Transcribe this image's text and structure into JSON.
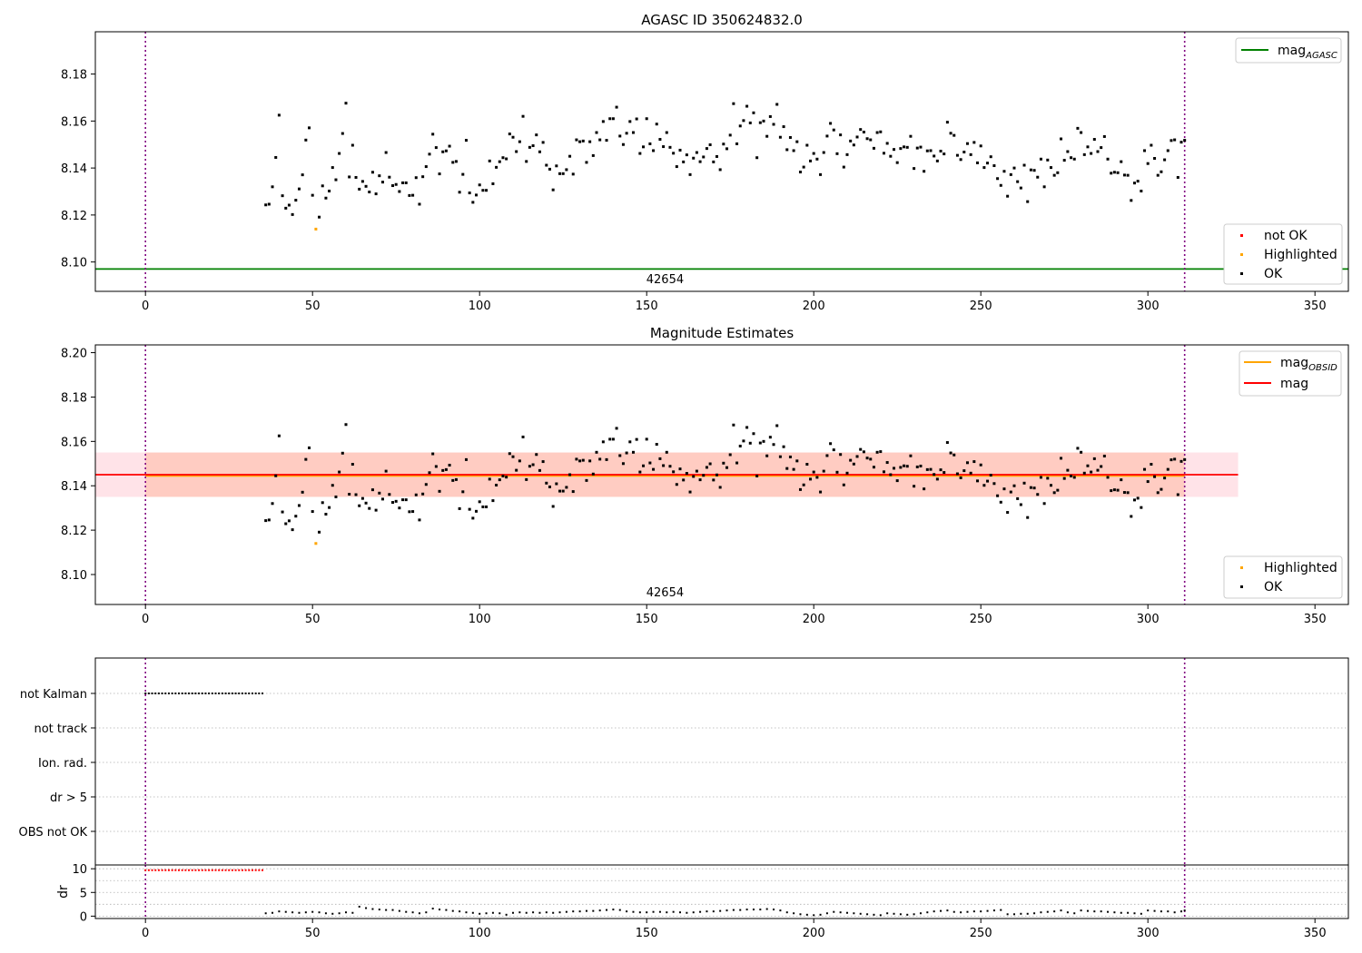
{
  "chart_data": [
    {
      "id": "agasc",
      "type": "scatter",
      "title": "AGASC ID 350624832.0",
      "xlim": [
        -15,
        360
      ],
      "ylim": [
        8.0875,
        8.198
      ],
      "xticks": [
        0,
        50,
        100,
        150,
        200,
        250,
        300,
        350
      ],
      "yticks": [
        8.1,
        8.12,
        8.14,
        8.16,
        8.18
      ],
      "ytick_labels": [
        "8.10",
        "8.12",
        "8.14",
        "8.16",
        "8.18"
      ],
      "obsid_label": "42654",
      "obsid_boundaries": [
        0,
        311
      ],
      "mag_agasc": 8.097,
      "legend_upper": [
        "mag_AGASC"
      ],
      "legend_lower": [
        "not OK",
        "Highlighted",
        "OK"
      ],
      "highlighted": [
        [
          51,
          8.114
        ]
      ],
      "not_ok": []
    },
    {
      "id": "estimates",
      "type": "scatter",
      "title": "Magnitude Estimates",
      "xlim": [
        -15,
        360
      ],
      "ylim": [
        8.0865,
        8.2035
      ],
      "xticks": [
        0,
        50,
        100,
        150,
        200,
        250,
        300,
        350
      ],
      "yticks": [
        8.1,
        8.12,
        8.14,
        8.16,
        8.18,
        8.2
      ],
      "ytick_labels": [
        "8.10",
        "8.12",
        "8.14",
        "8.16",
        "8.18",
        "8.20"
      ],
      "obsid_label": "42654",
      "obsid_boundaries": [
        0,
        311
      ],
      "mag": 8.145,
      "mag_band": [
        8.135,
        8.155
      ],
      "mag_extent": [
        -15,
        327
      ],
      "mag_obsid": 8.1445,
      "mag_obsid_band": [
        8.135,
        8.155
      ],
      "mag_obsid_extent": [
        0,
        311
      ],
      "legend_upper": [
        "mag_OBSID",
        "mag"
      ],
      "legend_lower": [
        "Highlighted",
        "OK"
      ],
      "highlighted": [
        [
          51,
          8.114
        ]
      ]
    },
    {
      "id": "flags",
      "type": "scatter",
      "categories": [
        "not Kalman",
        "not track",
        "Ion. rad.",
        "dr > 5",
        "OBS not OK"
      ],
      "xlim": [
        -15,
        360
      ],
      "flags": {
        "not Kalman": [
          0,
          35
        ]
      }
    },
    {
      "id": "dr",
      "type": "scatter",
      "ylabel": "dr",
      "xlim": [
        -15,
        360
      ],
      "ylim": [
        -0.5,
        10.8
      ],
      "yticks": [
        0,
        5,
        10
      ],
      "xticks": [
        0,
        50,
        100,
        150,
        200,
        250,
        300,
        350
      ],
      "not_ok_range": [
        0,
        35
      ],
      "not_ok_value": 9.7
    }
  ],
  "legend_text": {
    "mag_main": "mag",
    "agasc_sub": "AGASC",
    "obsid_sub": "OBSID",
    "mag_plain": "mag",
    "not_ok": "not OK",
    "highlighted": "Highlighted",
    "ok": "OK"
  },
  "colors": {
    "ok": "#000000",
    "highlighted": "#ffa500",
    "not_ok": "#ff0000",
    "agasc_line": "#008000",
    "mag_line": "#ff0000",
    "obsid_line": "#ffa500",
    "obsid_boundary": "#800080",
    "mag_band": "#ffc0cb",
    "obsid_band": "#ffa07a"
  },
  "ok_points": [
    [
      36,
      8.1243
    ],
    [
      37,
      8.1246
    ],
    [
      38,
      8.132
    ],
    [
      39,
      8.1445
    ],
    [
      40,
      8.1625
    ],
    [
      41,
      8.1282
    ],
    [
      42,
      8.1229
    ],
    [
      43,
      8.1242
    ],
    [
      44,
      8.1202
    ],
    [
      45,
      8.1263
    ],
    [
      46,
      8.1311
    ],
    [
      47,
      8.1371
    ],
    [
      48,
      8.1519
    ],
    [
      49,
      8.1571
    ],
    [
      50,
      8.1284
    ],
    [
      52,
      8.1191
    ],
    [
      53,
      8.1324
    ],
    [
      54,
      8.1272
    ],
    [
      55,
      8.1302
    ],
    [
      56,
      8.1402
    ],
    [
      57,
      8.135
    ],
    [
      58,
      8.1462
    ],
    [
      59,
      8.1547
    ],
    [
      60,
      8.1676
    ],
    [
      61,
      8.1362
    ],
    [
      62,
      8.1497
    ],
    [
      63,
      8.136
    ],
    [
      64,
      8.131
    ],
    [
      65,
      8.1343
    ],
    [
      66,
      8.1322
    ],
    [
      67,
      8.1298
    ],
    [
      68,
      8.1382
    ],
    [
      69,
      8.129
    ],
    [
      70,
      8.1367
    ],
    [
      71,
      8.134
    ],
    [
      72,
      8.1466
    ],
    [
      73,
      8.1361
    ],
    [
      74,
      8.1325
    ],
    [
      75,
      8.133
    ],
    [
      76,
      8.13
    ],
    [
      77,
      8.1337
    ],
    [
      78,
      8.1337
    ],
    [
      79,
      8.1283
    ],
    [
      80,
      8.1284
    ],
    [
      81,
      8.1359
    ],
    [
      82,
      8.1246
    ],
    [
      83,
      8.1363
    ],
    [
      84,
      8.1406
    ],
    [
      85,
      8.1459
    ],
    [
      86,
      8.1544
    ],
    [
      87,
      8.1487
    ],
    [
      88,
      8.1375
    ],
    [
      89,
      8.1469
    ],
    [
      90,
      8.1473
    ],
    [
      91,
      8.1493
    ],
    [
      92,
      8.1424
    ],
    [
      93,
      8.1428
    ],
    [
      94,
      8.1297
    ],
    [
      95,
      8.1373
    ],
    [
      96,
      8.1518
    ],
    [
      97,
      8.1294
    ],
    [
      98,
      8.1254
    ],
    [
      99,
      8.1285
    ],
    [
      100,
      8.1328
    ],
    [
      101,
      8.1305
    ],
    [
      102,
      8.1305
    ],
    [
      103,
      8.143
    ],
    [
      104,
      8.1333
    ],
    [
      105,
      8.1403
    ],
    [
      106,
      8.1427
    ],
    [
      107,
      8.1444
    ],
    [
      108,
      8.1439
    ],
    [
      109,
      8.1545
    ],
    [
      110,
      8.1531
    ],
    [
      111,
      8.147
    ],
    [
      112,
      8.1512
    ],
    [
      113,
      8.162
    ],
    [
      114,
      8.1428
    ],
    [
      115,
      8.1488
    ],
    [
      116,
      8.1495
    ],
    [
      117,
      8.1541
    ],
    [
      118,
      8.1469
    ],
    [
      119,
      8.1509
    ],
    [
      120,
      8.1412
    ],
    [
      121,
      8.1395
    ],
    [
      122,
      8.1307
    ],
    [
      123,
      8.1409
    ],
    [
      124,
      8.1376
    ],
    [
      125,
      8.1376
    ],
    [
      126,
      8.1393
    ],
    [
      127,
      8.145
    ],
    [
      128,
      8.1374
    ],
    [
      129,
      8.152
    ],
    [
      130,
      8.1512
    ],
    [
      131,
      8.1515
    ],
    [
      132,
      8.1424
    ],
    [
      133,
      8.1512
    ],
    [
      134,
      8.1453
    ],
    [
      135,
      8.1551
    ],
    [
      136,
      8.152
    ],
    [
      137,
      8.1598
    ],
    [
      138,
      8.1518
    ],
    [
      139,
      8.161
    ],
    [
      140,
      8.161
    ],
    [
      141,
      8.1659
    ],
    [
      142,
      8.1536
    ],
    [
      143,
      8.15
    ],
    [
      144,
      8.1548
    ],
    [
      145,
      8.1598
    ],
    [
      146,
      8.1551
    ],
    [
      147,
      8.1609
    ],
    [
      148,
      8.1462
    ],
    [
      149,
      8.149
    ],
    [
      150,
      8.161
    ],
    [
      151,
      8.1503
    ],
    [
      152,
      8.1474
    ],
    [
      153,
      8.1587
    ],
    [
      154,
      8.1522
    ],
    [
      155,
      8.1491
    ],
    [
      156,
      8.1551
    ],
    [
      157,
      8.1488
    ],
    [
      158,
      8.1463
    ],
    [
      159,
      8.1406
    ],
    [
      160,
      8.1476
    ],
    [
      161,
      8.1426
    ],
    [
      162,
      8.1456
    ],
    [
      163,
      8.1372
    ],
    [
      164,
      8.1442
    ],
    [
      165,
      8.1466
    ],
    [
      166,
      8.1427
    ],
    [
      167,
      8.1447
    ],
    [
      168,
      8.1483
    ],
    [
      169,
      8.1499
    ],
    [
      170,
      8.1426
    ],
    [
      171,
      8.1449
    ],
    [
      172,
      8.1393
    ],
    [
      173,
      8.1502
    ],
    [
      174,
      8.1482
    ],
    [
      175,
      8.154
    ],
    [
      176,
      8.1674
    ],
    [
      177,
      8.1503
    ],
    [
      178,
      8.1579
    ],
    [
      179,
      8.1602
    ],
    [
      180,
      8.1663
    ],
    [
      181,
      8.1592
    ],
    [
      182,
      8.1635
    ],
    [
      183,
      8.1444
    ],
    [
      184,
      8.1593
    ],
    [
      185,
      8.16
    ],
    [
      186,
      8.1535
    ],
    [
      187,
      8.1619
    ],
    [
      188,
      8.1586
    ],
    [
      189,
      8.1671
    ],
    [
      190,
      8.1531
    ],
    [
      191,
      8.1576
    ],
    [
      192,
      8.1478
    ],
    [
      193,
      8.153
    ],
    [
      194,
      8.1474
    ],
    [
      195,
      8.1512
    ],
    [
      196,
      8.1383
    ],
    [
      197,
      8.1404
    ],
    [
      198,
      8.1497
    ],
    [
      199,
      8.143
    ],
    [
      200,
      8.1462
    ],
    [
      201,
      8.1438
    ],
    [
      202,
      8.1372
    ],
    [
      203,
      8.1466
    ],
    [
      204,
      8.1536
    ],
    [
      205,
      8.159
    ],
    [
      206,
      8.1562
    ],
    [
      207,
      8.1461
    ],
    [
      208,
      8.1541
    ],
    [
      209,
      8.1404
    ],
    [
      210,
      8.1457
    ],
    [
      211,
      8.1515
    ],
    [
      212,
      8.1498
    ],
    [
      213,
      8.1532
    ],
    [
      214,
      8.1564
    ],
    [
      215,
      8.1553
    ],
    [
      216,
      8.1525
    ],
    [
      217,
      8.152
    ],
    [
      218,
      8.1484
    ],
    [
      219,
      8.1551
    ],
    [
      220,
      8.1554
    ],
    [
      221,
      8.1463
    ],
    [
      222,
      8.1505
    ],
    [
      223,
      8.145
    ],
    [
      224,
      8.1479
    ],
    [
      225,
      8.1423
    ],
    [
      226,
      8.1483
    ],
    [
      227,
      8.149
    ],
    [
      228,
      8.1488
    ],
    [
      229,
      8.1535
    ],
    [
      230,
      8.1398
    ],
    [
      231,
      8.1485
    ],
    [
      232,
      8.1489
    ],
    [
      233,
      8.1386
    ],
    [
      234,
      8.1473
    ],
    [
      235,
      8.1474
    ],
    [
      236,
      8.1451
    ],
    [
      237,
      8.143
    ],
    [
      238,
      8.1472
    ],
    [
      239,
      8.146
    ],
    [
      240,
      8.1595
    ],
    [
      241,
      8.1548
    ],
    [
      242,
      8.1539
    ],
    [
      243,
      8.1454
    ],
    [
      244,
      8.1436
    ],
    [
      245,
      8.1468
    ],
    [
      246,
      8.1504
    ],
    [
      247,
      8.1457
    ],
    [
      248,
      8.1509
    ],
    [
      249,
      8.1422
    ],
    [
      250,
      8.1494
    ],
    [
      251,
      8.1402
    ],
    [
      252,
      8.1421
    ],
    [
      253,
      8.1448
    ],
    [
      254,
      8.141
    ],
    [
      255,
      8.1355
    ],
    [
      256,
      8.1326
    ],
    [
      257,
      8.1386
    ],
    [
      258,
      8.128
    ],
    [
      259,
      8.1372
    ],
    [
      260,
      8.14
    ],
    [
      261,
      8.1342
    ],
    [
      262,
      8.1315
    ],
    [
      263,
      8.1412
    ],
    [
      264,
      8.1257
    ],
    [
      265,
      8.1392
    ],
    [
      266,
      8.139
    ],
    [
      267,
      8.1361
    ],
    [
      268,
      8.1438
    ],
    [
      269,
      8.132
    ],
    [
      270,
      8.1434
    ],
    [
      271,
      8.1402
    ],
    [
      272,
      8.1369
    ],
    [
      273,
      8.138
    ],
    [
      274,
      8.1524
    ],
    [
      275,
      8.1433
    ],
    [
      276,
      8.147
    ],
    [
      277,
      8.1444
    ],
    [
      278,
      8.1438
    ],
    [
      279,
      8.1569
    ],
    [
      280,
      8.1551
    ],
    [
      281,
      8.1457
    ],
    [
      282,
      8.149
    ],
    [
      283,
      8.1462
    ],
    [
      284,
      8.1522
    ],
    [
      285,
      8.147
    ],
    [
      286,
      8.1487
    ],
    [
      287,
      8.1534
    ],
    [
      288,
      8.1438
    ],
    [
      289,
      8.1378
    ],
    [
      290,
      8.1382
    ],
    [
      291,
      8.138
    ],
    [
      292,
      8.1427
    ],
    [
      293,
      8.137
    ],
    [
      294,
      8.1369
    ],
    [
      295,
      8.1262
    ],
    [
      296,
      8.1336
    ],
    [
      297,
      8.1344
    ],
    [
      298,
      8.1302
    ],
    [
      299,
      8.1474
    ],
    [
      300,
      8.1419
    ],
    [
      301,
      8.1497
    ],
    [
      302,
      8.1441
    ],
    [
      303,
      8.1369
    ],
    [
      304,
      8.1384
    ],
    [
      305,
      8.1435
    ],
    [
      306,
      8.1474
    ],
    [
      307,
      8.1517
    ],
    [
      308,
      8.152
    ],
    [
      309,
      8.136
    ],
    [
      310,
      8.151
    ],
    [
      311,
      8.1518
    ]
  ],
  "dr_points": [
    [
      36,
      0.6
    ],
    [
      38,
      0.7
    ],
    [
      40,
      1.0
    ],
    [
      42,
      0.9
    ],
    [
      44,
      0.8
    ],
    [
      46,
      0.7
    ],
    [
      48,
      0.8
    ],
    [
      50,
      0.9
    ],
    [
      52,
      0.8
    ],
    [
      54,
      0.6
    ],
    [
      56,
      0.5
    ],
    [
      58,
      0.6
    ],
    [
      60,
      0.8
    ],
    [
      62,
      0.7
    ],
    [
      64,
      2.0
    ],
    [
      66,
      1.7
    ],
    [
      68,
      1.5
    ],
    [
      70,
      1.4
    ],
    [
      72,
      1.3
    ],
    [
      74,
      1.3
    ],
    [
      76,
      1.1
    ],
    [
      78,
      0.9
    ],
    [
      80,
      0.8
    ],
    [
      82,
      0.6
    ],
    [
      84,
      0.8
    ],
    [
      86,
      1.6
    ],
    [
      88,
      1.4
    ],
    [
      90,
      1.3
    ],
    [
      92,
      1.1
    ],
    [
      94,
      1.0
    ],
    [
      96,
      0.8
    ],
    [
      98,
      0.7
    ],
    [
      100,
      0.5
    ],
    [
      102,
      0.6
    ],
    [
      104,
      0.7
    ],
    [
      106,
      0.6
    ],
    [
      108,
      0.3
    ],
    [
      110,
      0.7
    ],
    [
      112,
      0.8
    ],
    [
      114,
      0.7
    ],
    [
      116,
      0.8
    ],
    [
      118,
      0.7
    ],
    [
      120,
      0.8
    ],
    [
      122,
      0.7
    ],
    [
      124,
      0.8
    ],
    [
      126,
      0.9
    ],
    [
      128,
      1.0
    ],
    [
      130,
      1.0
    ],
    [
      132,
      1.1
    ],
    [
      134,
      1.1
    ],
    [
      136,
      1.2
    ],
    [
      138,
      1.3
    ],
    [
      140,
      1.4
    ],
    [
      142,
      1.3
    ],
    [
      144,
      1.0
    ],
    [
      146,
      0.9
    ],
    [
      148,
      0.8
    ],
    [
      150,
      0.8
    ],
    [
      152,
      0.9
    ],
    [
      154,
      0.9
    ],
    [
      156,
      0.8
    ],
    [
      158,
      0.9
    ],
    [
      160,
      0.8
    ],
    [
      162,
      0.7
    ],
    [
      164,
      0.8
    ],
    [
      166,
      0.9
    ],
    [
      168,
      1.0
    ],
    [
      170,
      1.0
    ],
    [
      172,
      1.1
    ],
    [
      174,
      1.2
    ],
    [
      176,
      1.3
    ],
    [
      178,
      1.3
    ],
    [
      180,
      1.4
    ],
    [
      182,
      1.4
    ],
    [
      184,
      1.4
    ],
    [
      186,
      1.5
    ],
    [
      188,
      1.4
    ],
    [
      190,
      1.2
    ],
    [
      192,
      0.8
    ],
    [
      194,
      0.6
    ],
    [
      196,
      0.4
    ],
    [
      198,
      0.3
    ],
    [
      200,
      0.2
    ],
    [
      202,
      0.3
    ],
    [
      204,
      0.6
    ],
    [
      206,
      0.9
    ],
    [
      208,
      0.8
    ],
    [
      210,
      0.7
    ],
    [
      212,
      0.6
    ],
    [
      214,
      0.5
    ],
    [
      216,
      0.4
    ],
    [
      218,
      0.3
    ],
    [
      220,
      0.2
    ],
    [
      222,
      0.6
    ],
    [
      224,
      0.5
    ],
    [
      226,
      0.4
    ],
    [
      228,
      0.3
    ],
    [
      230,
      0.4
    ],
    [
      232,
      0.6
    ],
    [
      234,
      0.8
    ],
    [
      236,
      1.0
    ],
    [
      238,
      1.1
    ],
    [
      240,
      1.2
    ],
    [
      242,
      0.9
    ],
    [
      244,
      0.8
    ],
    [
      246,
      0.9
    ],
    [
      248,
      1.0
    ],
    [
      250,
      1.0
    ],
    [
      252,
      1.1
    ],
    [
      254,
      1.2
    ],
    [
      256,
      1.3
    ],
    [
      258,
      0.4
    ],
    [
      260,
      0.4
    ],
    [
      262,
      0.5
    ],
    [
      264,
      0.5
    ],
    [
      266,
      0.6
    ],
    [
      268,
      0.8
    ],
    [
      270,
      0.9
    ],
    [
      272,
      1.0
    ],
    [
      274,
      1.2
    ],
    [
      276,
      0.8
    ],
    [
      278,
      0.6
    ],
    [
      280,
      1.2
    ],
    [
      282,
      1.1
    ],
    [
      284,
      1.0
    ],
    [
      286,
      1.0
    ],
    [
      288,
      0.9
    ],
    [
      290,
      0.8
    ],
    [
      292,
      0.7
    ],
    [
      294,
      0.7
    ],
    [
      296,
      0.6
    ],
    [
      298,
      0.5
    ],
    [
      300,
      1.2
    ],
    [
      302,
      1.1
    ],
    [
      304,
      1.0
    ],
    [
      306,
      1.0
    ],
    [
      308,
      0.8
    ],
    [
      310,
      1.0
    ],
    [
      311,
      1.2
    ]
  ]
}
